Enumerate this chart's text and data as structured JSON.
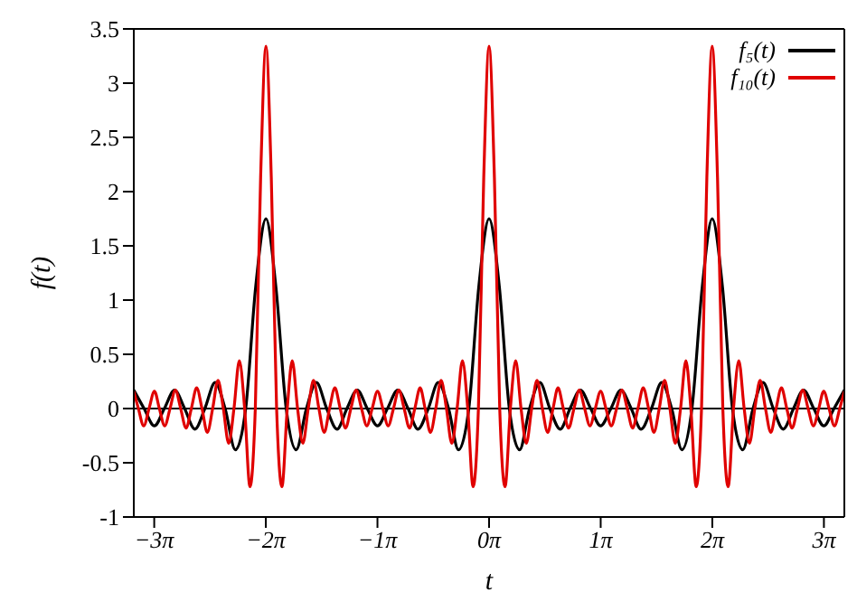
{
  "chart_data": {
    "type": "line",
    "xlabel": "t",
    "ylabel": "f(t)",
    "xlim": [
      -10,
      10
    ],
    "ylim": [
      -1,
      3.5
    ],
    "xticks": [
      {
        "value": -9.4248,
        "label": "−3π"
      },
      {
        "value": -6.2832,
        "label": "−2π"
      },
      {
        "value": -3.1416,
        "label": "−1π"
      },
      {
        "value": 0,
        "label": "0π"
      },
      {
        "value": 3.1416,
        "label": "1π"
      },
      {
        "value": 6.2832,
        "label": "2π"
      },
      {
        "value": 9.4248,
        "label": "3π"
      }
    ],
    "yticks": [
      -1,
      -0.5,
      0,
      0.5,
      1,
      1.5,
      2,
      2.5,
      3,
      3.5
    ],
    "grid": false,
    "legend": "top right",
    "marker": "none",
    "line_style": "solid",
    "ref_lines": [
      {
        "axis": "y",
        "value": 0,
        "color": "#000000"
      }
    ],
    "series": [
      {
        "name": "f₅(t)",
        "color": "#000000",
        "x": [
          -10.0,
          -9.71,
          -9.42,
          -9.14,
          -8.85,
          -8.57,
          -8.28,
          -8.0,
          -7.71,
          -7.43,
          -7.14,
          -6.85,
          -6.57,
          -6.28,
          -6.0,
          -5.71,
          -5.43,
          -5.14,
          -4.86,
          -4.57,
          -4.28,
          -4.0,
          -3.71,
          -3.43,
          -3.14,
          -2.86,
          -2.57,
          -2.28,
          -2.0,
          -1.71,
          -1.43,
          -1.14,
          -0.86,
          -0.57,
          -0.29,
          0,
          0.29,
          0.57,
          0.86,
          1.14,
          1.43,
          1.71,
          2.0,
          2.28,
          2.57,
          2.86,
          3.14,
          3.43,
          3.71,
          4.0,
          4.28,
          4.57,
          4.86,
          5.14,
          5.43,
          5.71,
          6.0,
          6.28,
          6.57,
          6.85,
          7.14,
          7.43,
          7.71,
          8.0,
          8.28,
          8.57,
          8.85,
          9.14,
          9.42,
          9.71,
          10.0
        ],
        "values": [
          0.17,
          0,
          -0.16,
          0,
          0.17,
          0,
          -0.19,
          0,
          0.24,
          0,
          -0.38,
          0,
          1.12,
          1.75,
          1.12,
          0,
          -0.38,
          0,
          0.24,
          0,
          -0.19,
          0,
          0.17,
          0,
          -0.16,
          0,
          0.17,
          0,
          -0.19,
          0,
          0.24,
          0,
          -0.38,
          0,
          1.12,
          1.75,
          1.12,
          0,
          -0.38,
          0,
          0.24,
          0,
          -0.19,
          0,
          0.17,
          0,
          -0.16,
          0,
          0.17,
          0,
          -0.19,
          0,
          0.24,
          0,
          -0.38,
          0,
          1.12,
          1.75,
          1.12,
          0,
          -0.38,
          0,
          0.24,
          0,
          -0.19,
          0,
          0.17,
          0,
          -0.16,
          0,
          0.17
        ]
      },
      {
        "name": "f₁₀(t)",
        "color": "#e00000",
        "x": [
          -10.0,
          -9.87,
          -9.72,
          -9.57,
          -9.42,
          -9.28,
          -9.13,
          -8.98,
          -8.83,
          -8.68,
          -8.53,
          -8.38,
          -8.23,
          -8.08,
          -7.93,
          -7.78,
          -7.63,
          -7.48,
          -7.33,
          -7.18,
          -7.03,
          -6.88,
          -6.73,
          -6.58,
          -6.43,
          -6.28,
          -6.13,
          -5.98,
          -5.83,
          -5.68,
          -5.54,
          -5.39,
          -5.24,
          -5.09,
          -4.94,
          -4.79,
          -4.64,
          -4.49,
          -4.34,
          -4.19,
          -4.04,
          -3.89,
          -3.74,
          -3.59,
          -3.44,
          -3.29,
          -3.14,
          -2.99,
          -2.84,
          -2.69,
          -2.54,
          -2.39,
          -2.24,
          -2.09,
          -1.94,
          -1.8,
          -1.65,
          -1.5,
          -1.35,
          -1.2,
          -1.05,
          -0.9,
          -0.75,
          -0.6,
          -0.45,
          -0.3,
          -0.15,
          0,
          0.15,
          0.3,
          0.45,
          0.6,
          0.75,
          0.9,
          1.05,
          1.2,
          1.35,
          1.5,
          1.65,
          1.8,
          1.94,
          2.09,
          2.24,
          2.39,
          2.54,
          2.69,
          2.84,
          2.99,
          3.14,
          3.29,
          3.44,
          3.59,
          3.74,
          3.89,
          4.04,
          4.19,
          4.34,
          4.49,
          4.64,
          4.79,
          4.94,
          5.09,
          5.24,
          5.39,
          5.54,
          5.68,
          5.83,
          5.98,
          6.13,
          6.28,
          6.43,
          6.58,
          6.73,
          6.88,
          7.03,
          7.18,
          7.33,
          7.48,
          7.63,
          7.78,
          7.93,
          8.08,
          8.23,
          8.38,
          8.53,
          8.68,
          8.83,
          8.98,
          9.13,
          9.28,
          9.42,
          9.57,
          9.72,
          9.87,
          10.0
        ],
        "values": [
          0.16,
          0,
          -0.16,
          0,
          0.16,
          0,
          -0.16,
          0,
          0.17,
          0,
          -0.18,
          0,
          0.19,
          0,
          -0.22,
          0,
          0.26,
          0,
          -0.32,
          0,
          0.44,
          0,
          -0.72,
          0,
          2.13,
          3.34,
          2.13,
          0,
          -0.72,
          0,
          0.44,
          0,
          -0.32,
          0,
          0.26,
          0,
          -0.22,
          0,
          0.19,
          0,
          -0.18,
          0,
          0.17,
          0,
          -0.16,
          0,
          0.16,
          0,
          -0.16,
          0,
          0.17,
          0,
          -0.18,
          0,
          0.19,
          0,
          -0.22,
          0,
          0.26,
          0,
          -0.32,
          0,
          0.44,
          0,
          -0.72,
          0,
          2.13,
          3.34,
          2.13,
          0,
          -0.72,
          0,
          0.44,
          0,
          -0.32,
          0,
          0.26,
          0,
          -0.22,
          0,
          0.19,
          0,
          -0.18,
          0,
          0.17,
          0,
          -0.16,
          0,
          0.16,
          0,
          -0.16,
          0,
          0.17,
          0,
          -0.18,
          0,
          0.19,
          0,
          -0.22,
          0,
          0.26,
          0,
          -0.32,
          0,
          0.44,
          0,
          -0.72,
          0,
          2.13,
          3.34,
          2.13,
          0,
          -0.72,
          0,
          0.44,
          0,
          -0.32,
          0,
          0.26,
          0,
          -0.22,
          0,
          0.19,
          0,
          -0.18,
          0,
          0.17,
          0,
          -0.16,
          0,
          0.16,
          0,
          -0.16,
          0,
          0.16
        ]
      }
    ]
  }
}
